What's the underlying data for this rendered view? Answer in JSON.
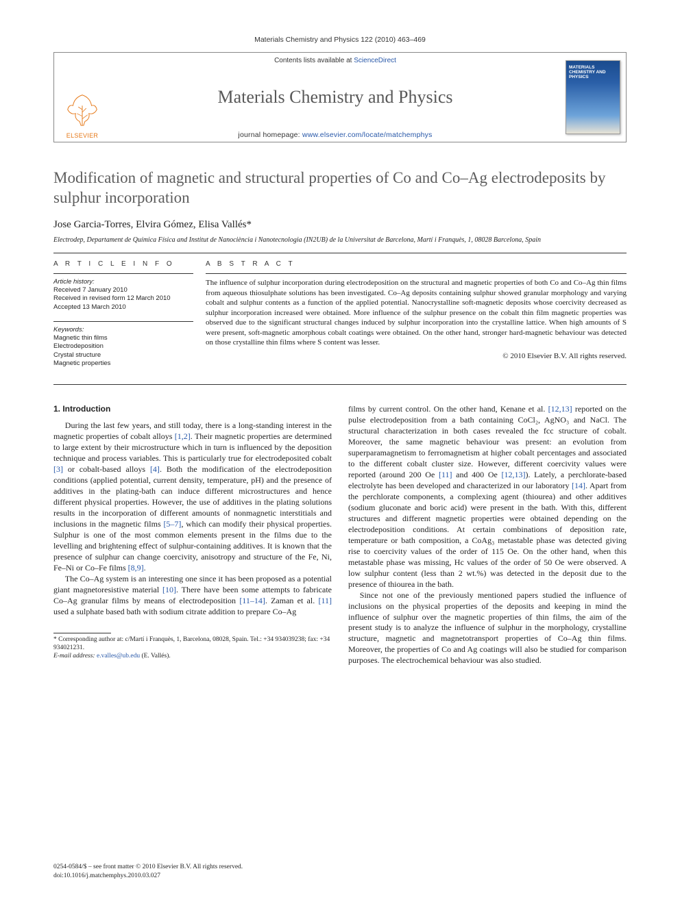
{
  "header": {
    "running_head": "Materials Chemistry and Physics 122 (2010) 463–469"
  },
  "banner": {
    "contents_lists": "Contents lists available at ",
    "sciencedirect": "ScienceDirect",
    "journal_name": "Materials Chemistry and Physics",
    "homepage_label": "journal homepage: ",
    "homepage_url": "www.elsevier.com/locate/matchemphys",
    "publisher": "ELSEVIER",
    "cover_title": "MATERIALS CHEMISTRY AND PHYSICS"
  },
  "article": {
    "title": "Modification of magnetic and structural properties of Co and Co–Ag electrodeposits by sulphur incorporation",
    "authors": "Jose Garcia-Torres, Elvira Gómez, Elisa Vallés*",
    "affiliation": "Electrodep, Departament de Química Física and Institut de Nanociència i Nanotecnologia (IN2UB) de la Universitat de Barcelona, Martí i Franquès, 1, 08028 Barcelona, Spain"
  },
  "info": {
    "head": "A R T I C L E   I N F O",
    "history_title": "Article history:",
    "history": "Received 7 January 2010\nReceived in revised form 12 March 2010\nAccepted 13 March 2010",
    "keywords_title": "Keywords:",
    "keywords": "Magnetic thin films\nElectrodeposition\nCrystal structure\nMagnetic properties"
  },
  "abstract": {
    "head": "A B S T R A C T",
    "text": "The influence of sulphur incorporation during electrodeposition on the structural and magnetic properties of both Co and Co–Ag thin films from aqueous thiosulphate solutions has been investigated. Co–Ag deposits containing sulphur showed granular morphology and varying cobalt and sulphur contents as a function of the applied potential. Nanocrystalline soft-magnetic deposits whose coercivity decreased as sulphur incorporation increased were obtained. More influence of the sulphur presence on the cobalt thin film magnetic properties was observed due to the significant structural changes induced by sulphur incorporation into the crystalline lattice. When high amounts of S were present, soft-magnetic amorphous cobalt coatings were obtained. On the other hand, stronger hard-magnetic behaviour was detected on those crystalline thin films where S content was lesser.",
    "copyright": "© 2010 Elsevier B.V. All rights reserved."
  },
  "body": {
    "section_head": "1.  Introduction",
    "p1": "During the last few years, and still today, there is a long-standing interest in the magnetic properties of cobalt alloys [1,2]. Their magnetic properties are determined to large extent by their microstructure which in turn is influenced by the deposition technique and process variables. This is particularly true for electrodeposited cobalt [3] or cobalt-based alloys [4]. Both the modification of the electrodeposition conditions (applied potential, current density, temperature, pH) and the presence of additives in the plating-bath can induce different microstructures and hence different physical properties. However, the use of additives in the plating solutions results in the incorporation of different amounts of nonmagnetic interstitials and inclusions in the magnetic films [5–7], which can modify their physical properties. Sulphur is one of the most common elements present in the films due to the levelling and brightening effect of sulphur-containing additives. It is known that the presence of sulphur can change coercivity, anisotropy and structure of the Fe, Ni, Fe–Ni or Co–Fe films [8,9].",
    "p2": "The Co–Ag system is an interesting one since it has been proposed as a potential giant magnetoresistive material [10]. There have been some attempts to fabricate Co–Ag granular films by means of electrodeposition [11–14]. Zaman et al. [11] used a sulphate based bath with sodium citrate addition to prepare Co–Ag",
    "p3": "films by current control. On the other hand, Kenane et al. [12,13] reported on the pulse electrodeposition from a bath containing CoCl₂, AgNO₃ and NaCl. The structural characterization in both cases revealed the fcc structure of cobalt. Moreover, the same magnetic behaviour was present: an evolution from superparamagnetism to ferromagnetism at higher cobalt percentages and associated to the different cobalt cluster size. However, different coercivity values were reported (around 200 Oe [11] and 400 Oe [12,13]). Lately, a perchlorate-based electrolyte has been developed and characterized in our laboratory [14]. Apart from the perchlorate components, a complexing agent (thiourea) and other additives (sodium gluconate and boric acid) were present in the bath. With this, different structures and different magnetic properties were obtained depending on the electrodeposition conditions. At certain combinations of deposition rate, temperature or bath composition, a CoAg₃ metastable phase was detected giving rise to coercivity values of the order of 115 Oe. On the other hand, when this metastable phase was missing, Hc values of the order of 50 Oe were observed. A low sulphur content (less than 2 wt.%) was detected in the deposit due to the presence of thiourea in the bath.",
    "p4": "Since not one of the previously mentioned papers studied the influence of inclusions on the physical properties of the deposits and keeping in mind the influence of sulphur over the magnetic properties of thin films, the aim of the present study is to analyze the influence of sulphur in the morphology, crystalline structure, magnetic and magnetotransport properties of Co–Ag thin films. Moreover, the properties of Co and Ag coatings will also be studied for comparison purposes. The electrochemical behaviour was also studied."
  },
  "footnote": {
    "corr": "* Corresponding author at: c/Martí i Franquès, 1, Barcelona, 08028, Spain. Tel.: +34 934039238; fax: +34 934021231.",
    "email_label": "E-mail address: ",
    "email": "e.valles@ub.edu",
    "email_suffix": " (E. Vallés)."
  },
  "footer": {
    "line1": "0254-0584/$ – see front matter © 2010 Elsevier B.V. All rights reserved.",
    "line2": "doi:10.1016/j.matchemphys.2010.03.027"
  },
  "colors": {
    "link": "#2757a8",
    "logo_orange": "#e67817",
    "title_gray": "#5d5d5d"
  }
}
